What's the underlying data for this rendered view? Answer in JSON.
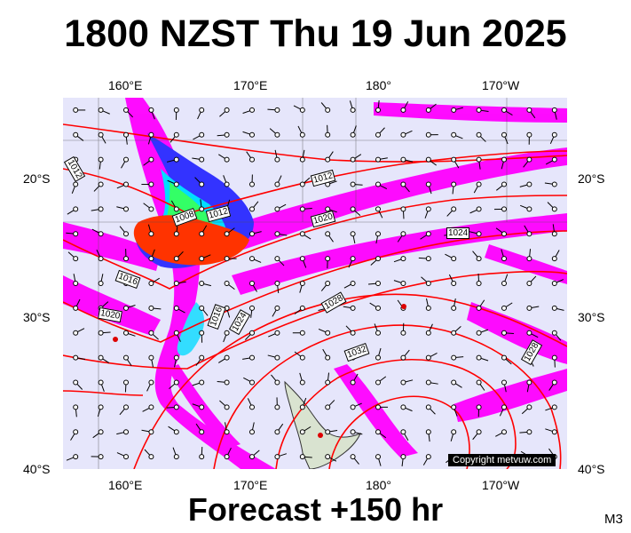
{
  "title": "1800 NZST Thu 19 Jun 2025",
  "footer": "Forecast +150 hr",
  "corner_code": "M3",
  "copyright": "Copyright metvuw.com",
  "axes": {
    "top_lon_labels": [
      "160°E",
      "170°E",
      "180°",
      "170°W"
    ],
    "bottom_lon_labels": [
      "160°E",
      "170°E",
      "180°",
      "170°W"
    ],
    "left_lat_labels": [
      "20°S",
      "30°S",
      "40°S"
    ],
    "right_lat_labels": [
      "20°S",
      "30°S",
      "40°S"
    ]
  },
  "isobar_labels": [
    "1012",
    "1012",
    "1008",
    "1012",
    "1016",
    "1020",
    "1024",
    "1016",
    "1020",
    "1028",
    "1024",
    "1032",
    "1028"
  ],
  "colors": {
    "background": "#e6e6fb",
    "isobar": "#ff0000",
    "rain_light": "#ff00ff",
    "rain_heavy": "#ff2200",
    "rain_mid": "#00ff66"
  }
}
